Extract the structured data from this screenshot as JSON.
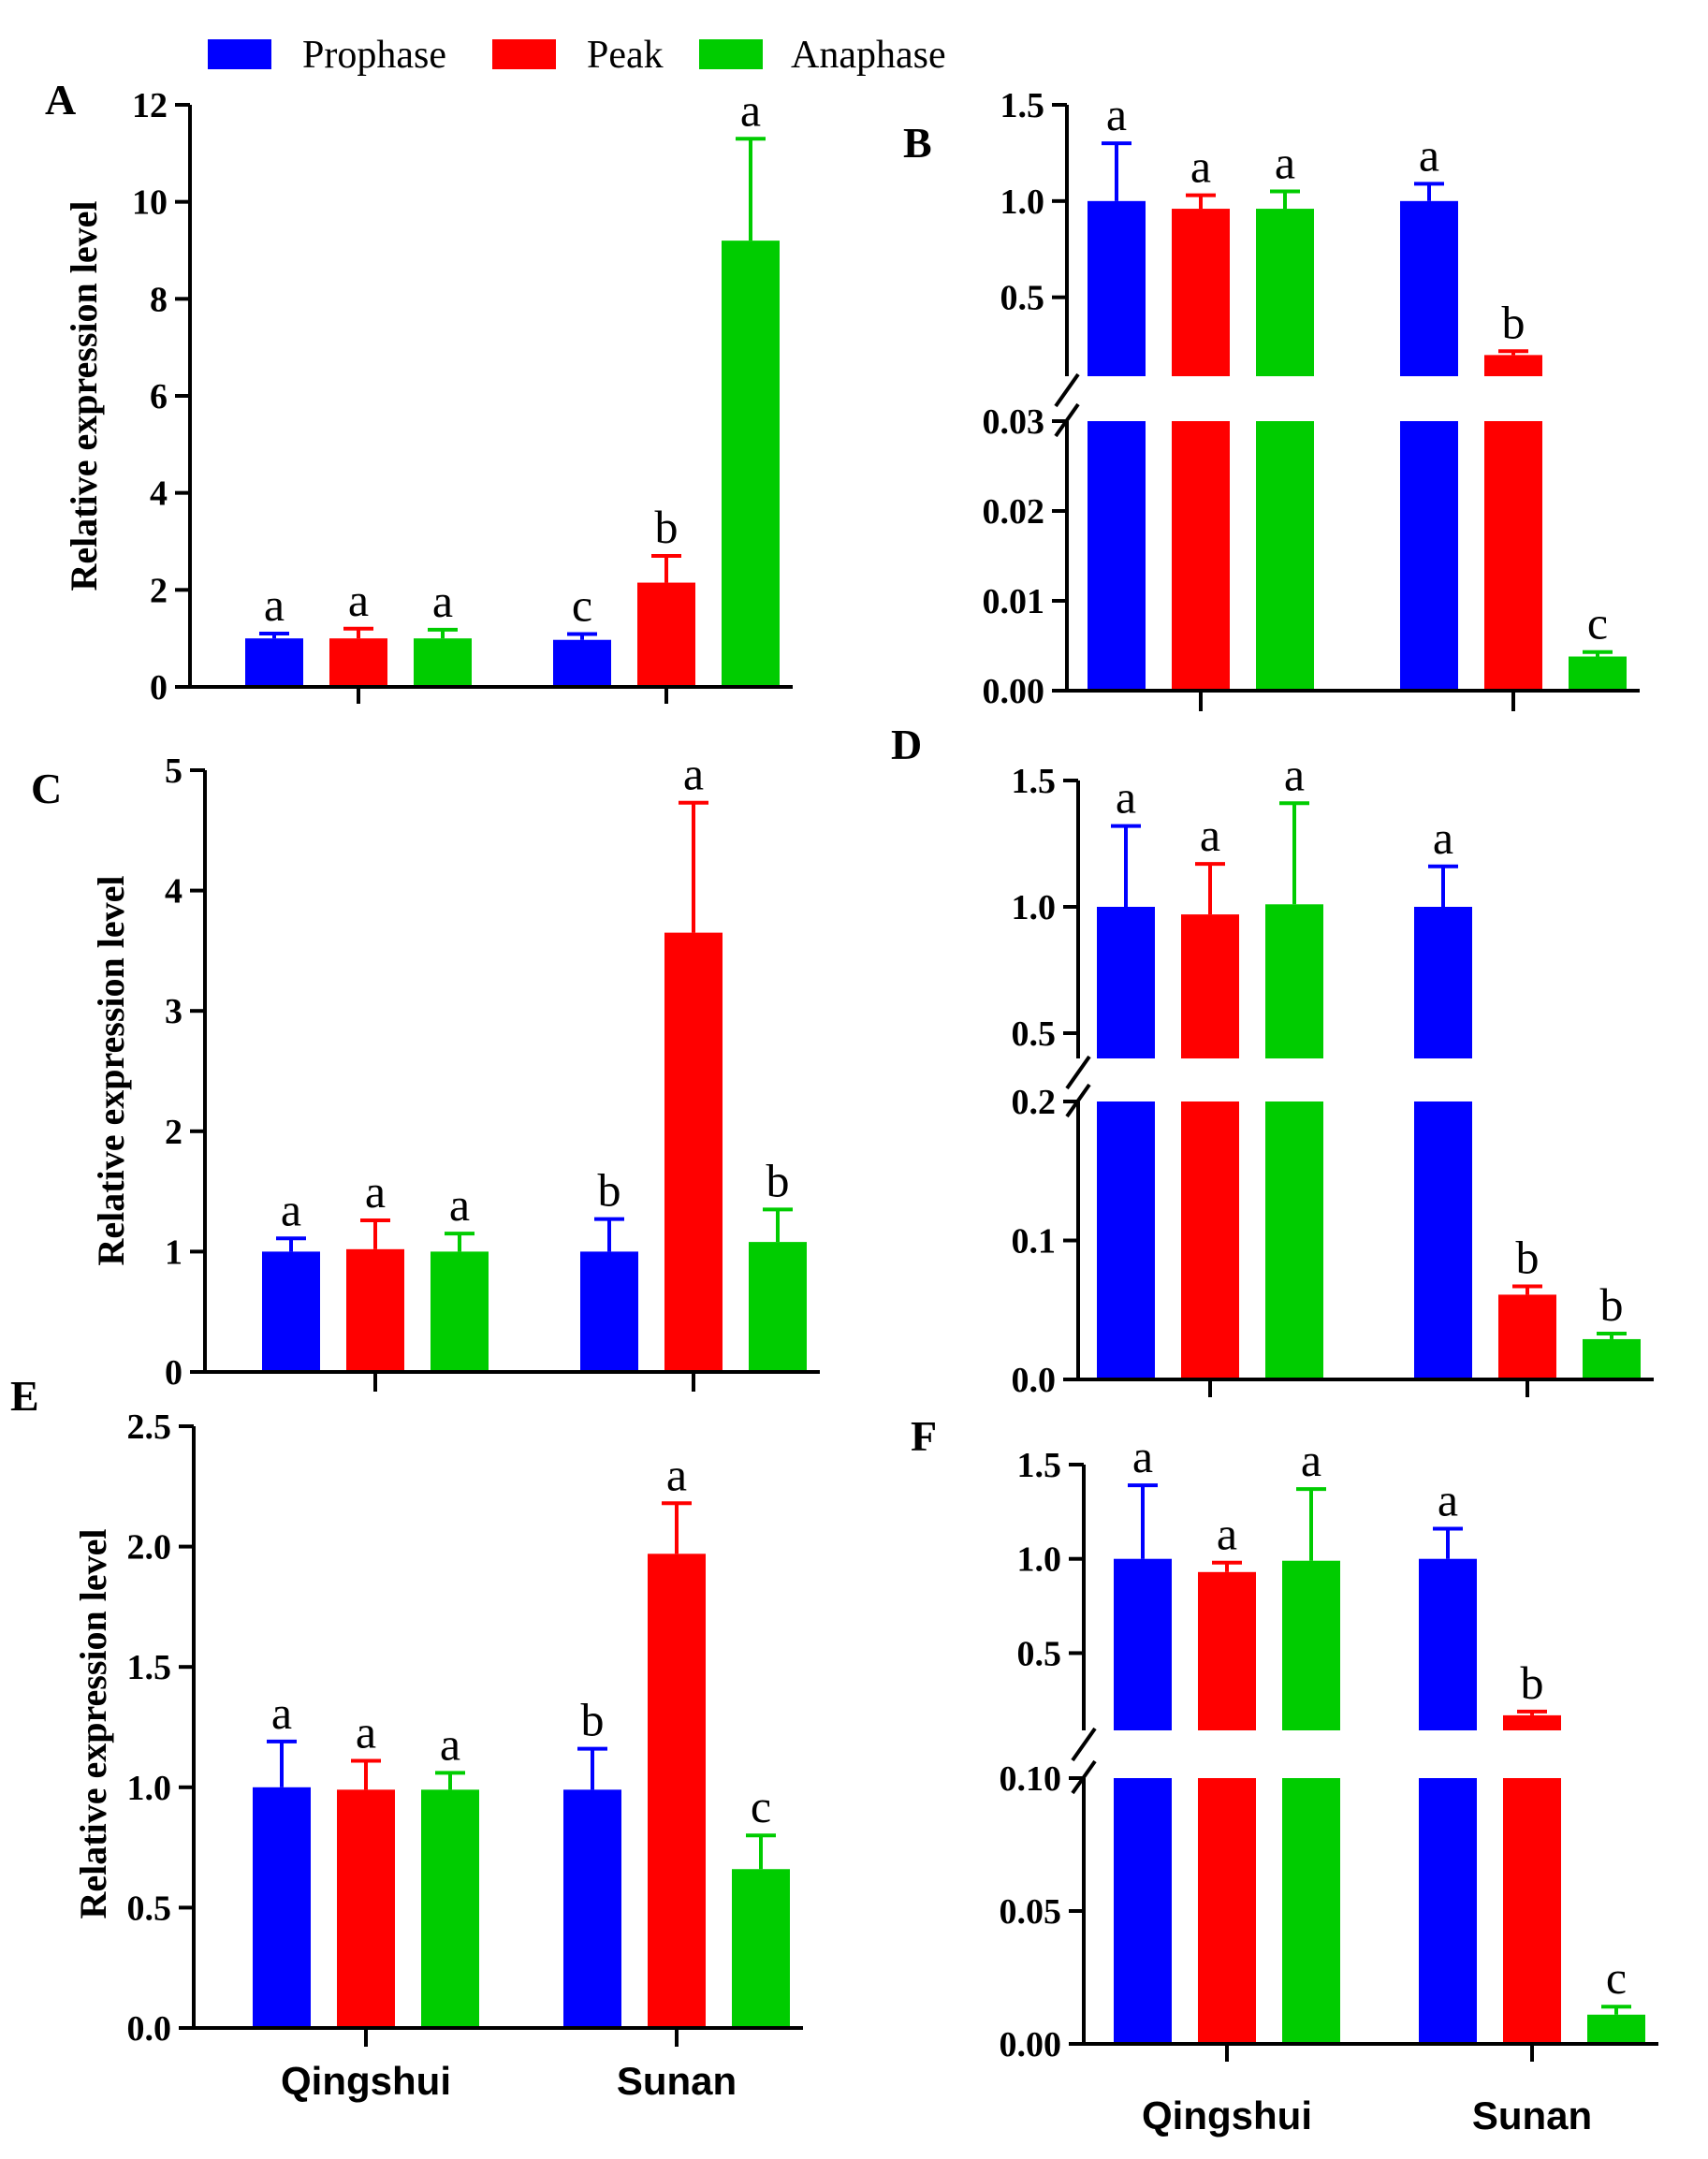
{
  "legend": {
    "items": [
      {
        "label": "Prophase",
        "color": "#0000ff"
      },
      {
        "label": "Peak",
        "color": "#ff0000"
      },
      {
        "label": "Anaphase",
        "color": "#00cc00"
      }
    ]
  },
  "x_groups": [
    "Qingshui",
    "Sunan"
  ],
  "chart_data": [
    {
      "panel": "A",
      "type": "bar",
      "ylabel": "Relative expression level",
      "categories": [
        "Qingshui",
        "Sunan"
      ],
      "ylim": [
        0,
        12
      ],
      "yticks": [
        0,
        2,
        4,
        6,
        8,
        10,
        12
      ],
      "ytick_labels": [
        "0",
        "2",
        "4",
        "6",
        "8",
        "10",
        "12"
      ],
      "series": [
        {
          "name": "Prophase",
          "values": [
            1.0,
            0.97
          ],
          "errors": [
            0.1,
            0.12
          ],
          "letters": [
            "a",
            "c"
          ]
        },
        {
          "name": "Peak",
          "values": [
            1.0,
            2.15
          ],
          "errors": [
            0.2,
            0.55
          ],
          "letters": [
            "a",
            "b"
          ]
        },
        {
          "name": "Anaphase",
          "values": [
            1.0,
            9.2
          ],
          "errors": [
            0.18,
            2.1
          ],
          "letters": [
            "a",
            "a"
          ]
        }
      ]
    },
    {
      "panel": "B",
      "type": "bar",
      "ylabel": "",
      "categories": [
        "Qingshui",
        "Sunan"
      ],
      "broken_axis": true,
      "segments": {
        "upper": {
          "range": [
            0.09,
            1.5
          ],
          "ticks": [
            0.5,
            1.0,
            1.5
          ],
          "tick_labels": [
            "0.5",
            "1.0",
            "1.5"
          ]
        },
        "lower": {
          "range": [
            0,
            0.03
          ],
          "ticks": [
            0,
            0.01,
            0.02,
            0.03
          ],
          "tick_labels": [
            "0.00",
            "0.01",
            "0.02",
            "0.03"
          ]
        }
      },
      "series": [
        {
          "name": "Prophase",
          "values": [
            1.0,
            1.0
          ],
          "errors": [
            0.3,
            0.09
          ],
          "letters": [
            "a",
            "a"
          ]
        },
        {
          "name": "Peak",
          "values": [
            0.96,
            0.2
          ],
          "errors": [
            0.07,
            0.02
          ],
          "letters": [
            "a",
            "b"
          ]
        },
        {
          "name": "Anaphase",
          "values": [
            0.96,
            0.0038
          ],
          "errors": [
            0.09,
            0.0005
          ],
          "letters": [
            "a",
            "c"
          ]
        }
      ]
    },
    {
      "panel": "C",
      "type": "bar",
      "ylabel": "Relative expression level",
      "categories": [
        "Qingshui",
        "Sunan"
      ],
      "ylim": [
        0,
        5
      ],
      "yticks": [
        0,
        1,
        2,
        3,
        4,
        5
      ],
      "ytick_labels": [
        "0",
        "1",
        "2",
        "3",
        "4",
        "5"
      ],
      "series": [
        {
          "name": "Prophase",
          "values": [
            1.0,
            1.0
          ],
          "errors": [
            0.11,
            0.27
          ],
          "letters": [
            "a",
            "b"
          ]
        },
        {
          "name": "Peak",
          "values": [
            1.02,
            3.65
          ],
          "errors": [
            0.24,
            1.08
          ],
          "letters": [
            "a",
            "a"
          ]
        },
        {
          "name": "Anaphase",
          "values": [
            1.0,
            1.08
          ],
          "errors": [
            0.15,
            0.27
          ],
          "letters": [
            "a",
            "b"
          ]
        }
      ]
    },
    {
      "panel": "D",
      "type": "bar",
      "ylabel": "",
      "categories": [
        "Qingshui",
        "Sunan"
      ],
      "broken_axis": true,
      "segments": {
        "upper": {
          "range": [
            0.4,
            1.5
          ],
          "ticks": [
            0.5,
            1.0,
            1.5
          ],
          "tick_labels": [
            "0.5",
            "1.0",
            "1.5"
          ]
        },
        "lower": {
          "range": [
            0,
            0.2
          ],
          "ticks": [
            0,
            0.1,
            0.2
          ],
          "tick_labels": [
            "0.0",
            "0.1",
            "0.2"
          ]
        }
      },
      "series": [
        {
          "name": "Prophase",
          "values": [
            1.0,
            1.0
          ],
          "errors": [
            0.32,
            0.16
          ],
          "letters": [
            "a",
            "a"
          ]
        },
        {
          "name": "Peak",
          "values": [
            0.97,
            0.061
          ],
          "errors": [
            0.2,
            0.006
          ],
          "letters": [
            "a",
            "b"
          ]
        },
        {
          "name": "Anaphase",
          "values": [
            1.01,
            0.029
          ],
          "errors": [
            0.4,
            0.004
          ],
          "letters": [
            "a",
            "b"
          ]
        }
      ]
    },
    {
      "panel": "E",
      "type": "bar",
      "ylabel": "Relative expression level",
      "categories": [
        "Qingshui",
        "Sunan"
      ],
      "ylim": [
        0,
        2.5
      ],
      "yticks": [
        0,
        0.5,
        1.0,
        1.5,
        2.0,
        2.5
      ],
      "ytick_labels": [
        "0.0",
        "0.5",
        "1.0",
        "1.5",
        "2.0",
        "2.5"
      ],
      "series": [
        {
          "name": "Prophase",
          "values": [
            1.0,
            0.99
          ],
          "errors": [
            0.19,
            0.17
          ],
          "letters": [
            "a",
            "b"
          ]
        },
        {
          "name": "Peak",
          "values": [
            0.99,
            1.97
          ],
          "errors": [
            0.12,
            0.21
          ],
          "letters": [
            "a",
            "a"
          ]
        },
        {
          "name": "Anaphase",
          "values": [
            0.99,
            0.66
          ],
          "errors": [
            0.07,
            0.14
          ],
          "letters": [
            "a",
            "c"
          ]
        }
      ]
    },
    {
      "panel": "F",
      "type": "bar",
      "ylabel": "",
      "categories": [
        "Qingshui",
        "Sunan"
      ],
      "broken_axis": true,
      "segments": {
        "upper": {
          "range": [
            0.09,
            1.5
          ],
          "ticks": [
            0.5,
            1.0,
            1.5
          ],
          "tick_labels": [
            "0.5",
            "1.0",
            "1.5"
          ]
        },
        "lower": {
          "range": [
            0,
            0.1
          ],
          "ticks": [
            0,
            0.05,
            0.1
          ],
          "tick_labels": [
            "0.00",
            "0.05",
            "0.10"
          ]
        }
      },
      "series": [
        {
          "name": "Prophase",
          "values": [
            1.0,
            1.0
          ],
          "errors": [
            0.39,
            0.16
          ],
          "letters": [
            "a",
            "a"
          ]
        },
        {
          "name": "Peak",
          "values": [
            0.93,
            0.17
          ],
          "errors": [
            0.05,
            0.02
          ],
          "letters": [
            "a",
            "b"
          ]
        },
        {
          "name": "Anaphase",
          "values": [
            0.99,
            0.011
          ],
          "errors": [
            0.38,
            0.003
          ],
          "letters": [
            "a",
            "c"
          ]
        }
      ]
    }
  ]
}
